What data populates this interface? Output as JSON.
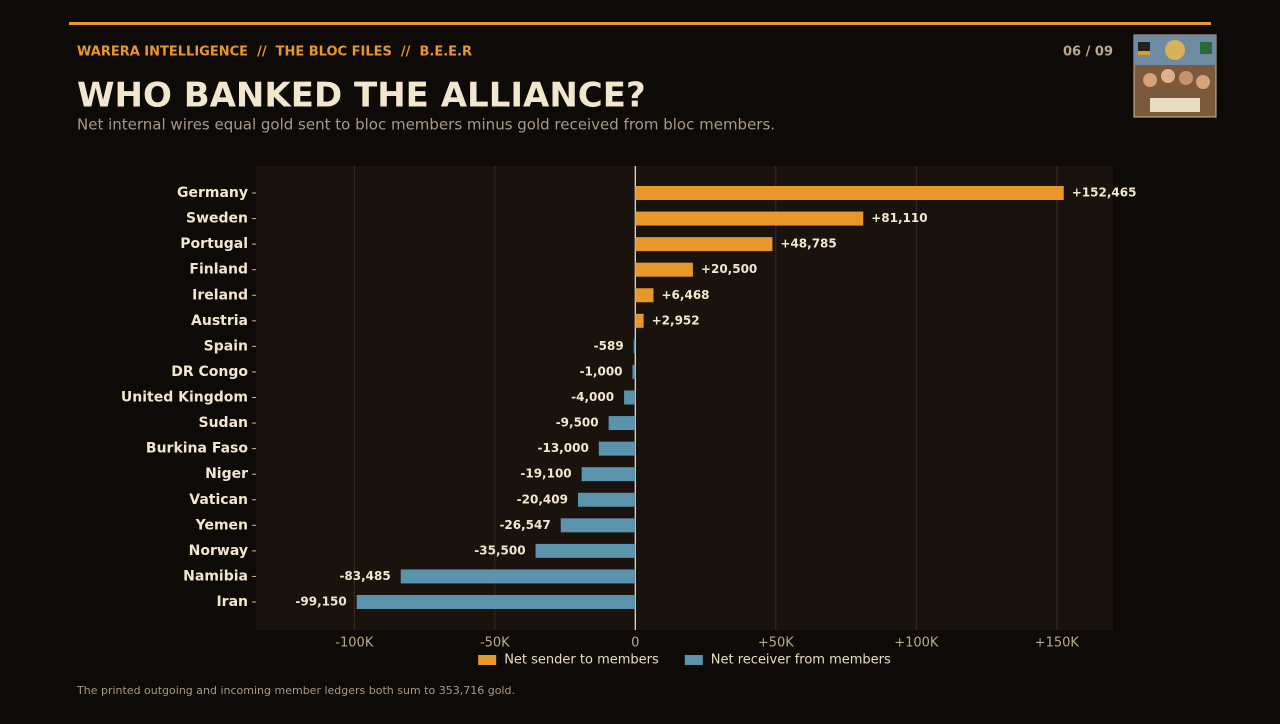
{
  "header": {
    "kicker": "WARERA INTELLIGENCE  //  THE BLOC FILES  //  B.E.E.R",
    "page": "06 / 09"
  },
  "chart_data": {
    "type": "hbar",
    "title": "WHO BANKED THE ALLIANCE?",
    "subtitle": "Net internal wires equal gold sent to bloc members minus gold received from bloc members.",
    "categories": [
      "Germany",
      "Sweden",
      "Portugal",
      "Finland",
      "Ireland",
      "Austria",
      "Spain",
      "DR Congo",
      "United Kingdom",
      "Sudan",
      "Burkina Faso",
      "Niger",
      "Vatican",
      "Yemen",
      "Norway",
      "Namibia",
      "Iran"
    ],
    "values": [
      152465,
      81110,
      48785,
      20500,
      6468,
      2952,
      -589,
      -1000,
      -4000,
      -9500,
      -13000,
      -19100,
      -20409,
      -26547,
      -35500,
      -83485,
      -99150
    ],
    "value_labels": [
      "+152,465",
      "+81,110",
      "+48,785",
      "+20,500",
      "+6,468",
      "+2,952",
      "-589",
      "-1,000",
      "-4,000",
      "-9,500",
      "-13,000",
      "-19,100",
      "-20,409",
      "-26,547",
      "-35,500",
      "-83,485",
      "-99,150"
    ],
    "positive_color": "#e8982a",
    "negative_color": "#5b93ad",
    "legend": [
      {
        "name": "Net sender to members",
        "color": "#e8982a"
      },
      {
        "name": "Net receiver from members",
        "color": "#5b93ad"
      }
    ],
    "xlim": [
      -135000,
      170000
    ],
    "xticks": [
      {
        "value": -100000,
        "label": "-100K"
      },
      {
        "value": -50000,
        "label": "-50K"
      },
      0,
      {
        "value": 50000,
        "label": "+50K"
      },
      {
        "value": 100000,
        "label": "+100K"
      },
      {
        "value": 150000,
        "label": "+150K"
      }
    ],
    "grid": true
  },
  "footer": {
    "note": "The printed outgoing and incoming member ledgers both sum to 353,716 gold."
  }
}
